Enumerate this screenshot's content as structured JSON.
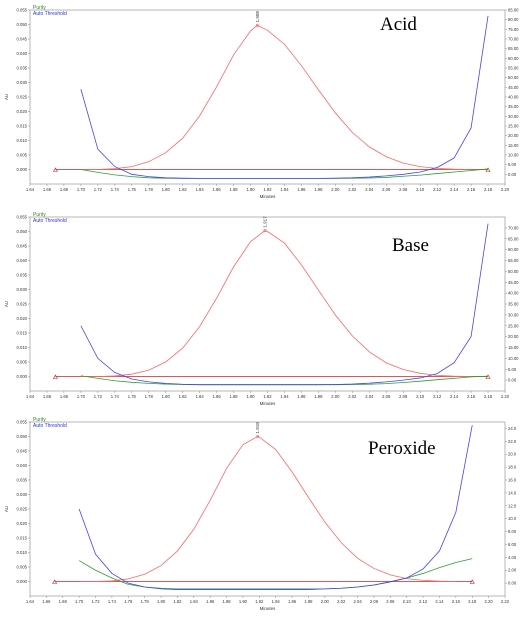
{
  "colors": {
    "purity": "#2e9e2e",
    "threshold": "#4444ee",
    "peak": "#ff6666",
    "baseline": "#cc2222",
    "axis": "#888888"
  },
  "chart_data": [
    {
      "type": "line",
      "title": "Acid",
      "legend": [
        "Purity",
        "Auto Threshold"
      ],
      "xlabel": "Minutes",
      "ylabel": "AU",
      "xlim": [
        1.64,
        2.2
      ],
      "ylim": [
        -0.005,
        0.055
      ],
      "y2lim": [
        -5,
        85
      ],
      "xticks": [
        "1.64",
        "1.66",
        "1.68",
        "1.70",
        "1.72",
        "1.74",
        "1.76",
        "1.78",
        "1.80",
        "1.82",
        "1.84",
        "1.86",
        "1.88",
        "1.90",
        "1.92",
        "1.94",
        "1.96",
        "1.98",
        "2.00",
        "2.02",
        "2.04",
        "2.06",
        "2.08",
        "2.10",
        "2.12",
        "2.14",
        "2.16",
        "2.18",
        "2.20"
      ],
      "yticks": [
        "0.000",
        "0.005",
        "0.010",
        "0.015",
        "0.020",
        "0.025",
        "0.030",
        "0.035",
        "0.040",
        "0.045",
        "0.050",
        "0.055"
      ],
      "y2ticks": [
        "0.00",
        "5.00",
        "10.00",
        "15.00",
        "20.00",
        "25.00",
        "30.00",
        "35.00",
        "40.00",
        "45.00",
        "50.00",
        "55.00",
        "60.00",
        "65.00",
        "70.00",
        "75.00",
        "80.00",
        "85.00"
      ],
      "peak_label": "1.908",
      "series": [
        {
          "name": "",
          "role": "peak",
          "x": [
            1.7,
            1.72,
            1.74,
            1.76,
            1.78,
            1.8,
            1.82,
            1.84,
            1.86,
            1.88,
            1.9,
            1.908,
            1.92,
            1.94,
            1.96,
            1.98,
            2.0,
            2.02,
            2.04,
            2.06,
            2.08,
            2.1,
            2.12,
            2.14,
            2.16
          ],
          "y": [
            0.0,
            0.0,
            0.0003,
            0.001,
            0.0027,
            0.0058,
            0.0108,
            0.0185,
            0.0285,
            0.0395,
            0.0478,
            0.0497,
            0.048,
            0.0432,
            0.0358,
            0.0275,
            0.0195,
            0.0128,
            0.0078,
            0.0044,
            0.0022,
            0.001,
            0.0004,
            0.0001,
            0.0
          ]
        },
        {
          "name": "Purity",
          "role": "purity",
          "x": [
            1.7,
            1.72,
            1.74,
            1.76,
            1.78,
            1.8,
            1.82,
            1.84,
            1.86,
            1.88,
            1.9,
            1.92,
            1.94,
            1.96,
            1.98,
            2.0,
            2.02,
            2.04,
            2.06,
            2.08,
            2.1,
            2.12,
            2.14,
            2.16,
            2.18
          ],
          "y": [
            2.5,
            1.0,
            -0.3,
            -1.2,
            -1.8,
            -2.0,
            -2.1,
            -2.1,
            -2.1,
            -2.1,
            -2.1,
            -2.1,
            -2.1,
            -2.1,
            -2.1,
            -2.1,
            -2.0,
            -1.9,
            -1.6,
            -1.0,
            -0.4,
            0.4,
            1.2,
            2.0,
            2.8
          ]
        },
        {
          "name": "Auto Threshold",
          "role": "threshold",
          "x": [
            1.7,
            1.72,
            1.74,
            1.76,
            1.78,
            1.8,
            1.82,
            1.84,
            1.86,
            1.88,
            1.9,
            1.92,
            1.94,
            1.96,
            1.98,
            2.0,
            2.02,
            2.04,
            2.06,
            2.08,
            2.1,
            2.12,
            2.14,
            2.16,
            2.18
          ],
          "y": [
            44.0,
            13.0,
            4.0,
            0.0,
            -1.2,
            -1.8,
            -2.0,
            -2.1,
            -2.1,
            -2.1,
            -2.1,
            -2.1,
            -2.1,
            -2.1,
            -2.1,
            -2.0,
            -1.8,
            -1.4,
            -0.8,
            0.0,
            1.2,
            3.5,
            8.5,
            24.0,
            82.0
          ]
        }
      ]
    },
    {
      "type": "line",
      "title": "Base",
      "legend": [
        "Purity",
        "Auto Threshold"
      ],
      "xlabel": "Minutes",
      "ylabel": "AU",
      "xlim": [
        1.64,
        2.2
      ],
      "ylim": [
        -0.005,
        0.055
      ],
      "y2lim": [
        -5,
        75
      ],
      "xticks": [
        "1.64",
        "1.66",
        "1.68",
        "1.70",
        "1.72",
        "1.74",
        "1.76",
        "1.78",
        "1.80",
        "1.82",
        "1.84",
        "1.86",
        "1.88",
        "1.90",
        "1.92",
        "1.94",
        "1.96",
        "1.98",
        "2.00",
        "2.02",
        "2.04",
        "2.06",
        "2.08",
        "2.10",
        "2.12",
        "2.14",
        "2.16",
        "2.18",
        "2.20"
      ],
      "yticks": [
        "0.000",
        "0.005",
        "0.010",
        "0.015",
        "0.020",
        "0.025",
        "0.030",
        "0.035",
        "0.040",
        "0.045",
        "0.050",
        "0.055"
      ],
      "y2ticks": [
        "0.00",
        "5.00",
        "10.00",
        "15.00",
        "20.00",
        "25.00",
        "30.00",
        "35.00",
        "40.00",
        "45.00",
        "50.00",
        "55.00",
        "60.00",
        "65.00",
        "70.00"
      ],
      "peak_label": "1.917",
      "series": [
        {
          "name": "",
          "role": "peak",
          "x": [
            1.7,
            1.72,
            1.74,
            1.76,
            1.78,
            1.8,
            1.82,
            1.84,
            1.86,
            1.88,
            1.9,
            1.917,
            1.92,
            1.94,
            1.96,
            1.98,
            2.0,
            2.02,
            2.04,
            2.06,
            2.08,
            2.1,
            2.12,
            2.14,
            2.16
          ],
          "y": [
            0.0,
            0.0,
            0.0002,
            0.0008,
            0.0022,
            0.005,
            0.0098,
            0.0172,
            0.027,
            0.0378,
            0.0465,
            0.0503,
            0.05,
            0.046,
            0.0385,
            0.0298,
            0.0212,
            0.014,
            0.0085,
            0.0047,
            0.0024,
            0.0011,
            0.0004,
            0.0001,
            0.0
          ]
        },
        {
          "name": "Purity",
          "role": "purity",
          "x": [
            1.7,
            1.72,
            1.74,
            1.76,
            1.78,
            1.8,
            1.82,
            1.84,
            1.86,
            1.88,
            1.9,
            1.92,
            1.94,
            1.96,
            1.98,
            2.0,
            2.02,
            2.04,
            2.06,
            2.08,
            2.1,
            2.12,
            2.14,
            2.16,
            2.18
          ],
          "y": [
            2.0,
            0.8,
            -0.3,
            -1.0,
            -1.5,
            -1.8,
            -2.0,
            -2.1,
            -2.1,
            -2.1,
            -2.1,
            -2.1,
            -2.1,
            -2.1,
            -2.1,
            -2.1,
            -2.0,
            -1.9,
            -1.6,
            -1.1,
            -0.5,
            0.2,
            0.8,
            1.5,
            1.8
          ]
        },
        {
          "name": "Auto Threshold",
          "role": "threshold",
          "x": [
            1.7,
            1.72,
            1.74,
            1.76,
            1.78,
            1.8,
            1.82,
            1.84,
            1.86,
            1.88,
            1.9,
            1.92,
            1.94,
            1.96,
            1.98,
            2.0,
            2.02,
            2.04,
            2.06,
            2.08,
            2.1,
            2.12,
            2.14,
            2.16,
            2.18
          ],
          "y": [
            25.0,
            10.0,
            3.5,
            0.5,
            -0.8,
            -1.5,
            -1.9,
            -2.1,
            -2.1,
            -2.1,
            -2.1,
            -2.1,
            -2.1,
            -2.1,
            -2.1,
            -2.0,
            -1.8,
            -1.4,
            -0.8,
            0.0,
            1.0,
            3.0,
            8.0,
            20.0,
            72.0
          ]
        }
      ]
    },
    {
      "type": "line",
      "title": "Peroxide",
      "legend": [
        "Purity",
        "Auto Threshold"
      ],
      "xlabel": "Minutes",
      "ylabel": "AU",
      "xlim": [
        1.64,
        2.22
      ],
      "ylim": [
        -0.005,
        0.055
      ],
      "y2lim": [
        -2,
        25
      ],
      "xticks": [
        "1.64",
        "1.66",
        "1.68",
        "1.70",
        "1.72",
        "1.74",
        "1.76",
        "1.78",
        "1.80",
        "1.82",
        "1.84",
        "1.86",
        "1.88",
        "1.90",
        "1.92",
        "1.94",
        "1.96",
        "1.98",
        "2.00",
        "2.02",
        "2.04",
        "2.06",
        "2.08",
        "2.10",
        "2.12",
        "2.14",
        "2.16",
        "2.18",
        "2.20",
        "2.22"
      ],
      "yticks": [
        "0.000",
        "0.005",
        "0.010",
        "0.015",
        "0.020",
        "0.025",
        "0.030",
        "0.035",
        "0.040",
        "0.045",
        "0.050",
        "0.055"
      ],
      "y2ticks": [
        "0.00",
        "2.00",
        "4.00",
        "6.00",
        "8.00",
        "10.0",
        "12.0",
        "14.0",
        "16.0",
        "18.0",
        "20.0",
        "22.0",
        "24.0"
      ],
      "peak_label": "1.918",
      "series": [
        {
          "name": "",
          "role": "peak",
          "x": [
            1.7,
            1.72,
            1.74,
            1.76,
            1.78,
            1.8,
            1.82,
            1.84,
            1.86,
            1.88,
            1.9,
            1.918,
            1.92,
            1.94,
            1.96,
            1.98,
            2.0,
            2.02,
            2.04,
            2.06,
            2.08,
            2.1,
            2.12,
            2.14,
            2.16
          ],
          "y": [
            0.0,
            0.0,
            0.0002,
            0.0009,
            0.0025,
            0.0055,
            0.0105,
            0.018,
            0.028,
            0.039,
            0.0472,
            0.05,
            0.0498,
            0.0455,
            0.0378,
            0.029,
            0.0205,
            0.0134,
            0.008,
            0.0045,
            0.0023,
            0.001,
            0.0004,
            0.0001,
            0.0
          ]
        },
        {
          "name": "Purity",
          "role": "purity",
          "x": [
            1.7,
            1.72,
            1.74,
            1.76,
            1.78,
            1.8,
            1.82,
            1.84,
            1.86,
            1.88,
            1.9,
            1.92,
            1.94,
            1.96,
            1.98,
            2.0,
            2.02,
            2.04,
            2.06,
            2.08,
            2.1,
            2.12,
            2.14,
            2.16,
            2.18
          ],
          "y": [
            3.5,
            2.0,
            0.8,
            -0.2,
            -0.6,
            -0.8,
            -0.9,
            -0.9,
            -0.9,
            -0.9,
            -0.9,
            -0.9,
            -0.9,
            -0.9,
            -0.9,
            -0.9,
            -0.8,
            -0.6,
            -0.3,
            0.2,
            0.8,
            1.5,
            2.4,
            3.2,
            3.8
          ]
        },
        {
          "name": "Auto Threshold",
          "role": "threshold",
          "x": [
            1.7,
            1.72,
            1.74,
            1.76,
            1.78,
            1.8,
            1.82,
            1.84,
            1.86,
            1.88,
            1.9,
            1.92,
            1.94,
            1.96,
            1.98,
            2.0,
            2.02,
            2.04,
            2.06,
            2.08,
            2.1,
            2.12,
            2.14,
            2.16,
            2.18
          ],
          "y": [
            11.5,
            4.5,
            1.5,
            0.0,
            -0.6,
            -0.9,
            -1.0,
            -1.0,
            -1.0,
            -1.0,
            -1.0,
            -1.0,
            -1.0,
            -1.0,
            -1.0,
            -0.9,
            -0.8,
            -0.6,
            -0.3,
            0.2,
            0.8,
            2.2,
            5.0,
            11.0,
            24.5
          ]
        }
      ]
    }
  ]
}
